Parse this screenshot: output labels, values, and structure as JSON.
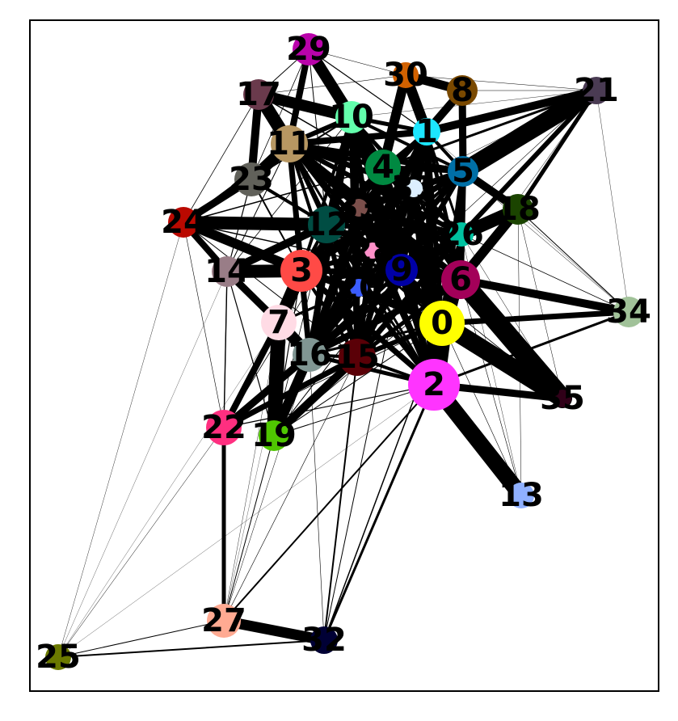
{
  "graph": {
    "nodes": [
      {
        "id": "0",
        "color": "#ffff00"
      },
      {
        "id": "1",
        "color": "#1ce6ff"
      },
      {
        "id": "2",
        "color": "#ff34ff"
      },
      {
        "id": "3",
        "color": "#ff4a46"
      },
      {
        "id": "4",
        "color": "#008941"
      },
      {
        "id": "5",
        "color": "#006fa6"
      },
      {
        "id": "6",
        "color": "#a30059"
      },
      {
        "id": "7",
        "color": "#ffdbe5"
      },
      {
        "id": "8",
        "color": "#7a4900"
      },
      {
        "id": "9",
        "color": "#0000a6"
      },
      {
        "id": "10",
        "color": "#63ffac"
      },
      {
        "id": "11",
        "color": "#b79762"
      },
      {
        "id": "12",
        "color": "#004d43"
      },
      {
        "id": "13",
        "color": "#8fb0ff"
      },
      {
        "id": "14",
        "color": "#997d87"
      },
      {
        "id": "15",
        "color": "#5a0007"
      },
      {
        "id": "16",
        "color": "#809693"
      },
      {
        "id": "17",
        "color": "#6a3a4c"
      },
      {
        "id": "18",
        "color": "#1b4400"
      },
      {
        "id": "19",
        "color": "#4fc601"
      },
      {
        "id": "20",
        "color": "#3b5dff"
      },
      {
        "id": "21",
        "color": "#4a3b53"
      },
      {
        "id": "22",
        "color": "#ff2f80"
      },
      {
        "id": "23",
        "color": "#61615a"
      },
      {
        "id": "24",
        "color": "#ba0900"
      },
      {
        "id": "25",
        "color": "#6b7900"
      },
      {
        "id": "26",
        "color": "#00c2a0"
      },
      {
        "id": "27",
        "color": "#ffaa92"
      },
      {
        "id": "28",
        "color": "#ff90c9"
      },
      {
        "id": "29",
        "color": "#b903aa"
      },
      {
        "id": "30",
        "color": "#d16100"
      },
      {
        "id": "31",
        "color": "#ddefff"
      },
      {
        "id": "32",
        "color": "#000035"
      },
      {
        "id": "33",
        "color": "#7b4f4b"
      },
      {
        "id": "34",
        "color": "#a1c299"
      },
      {
        "id": "35",
        "color": "#300018"
      }
    ]
  }
}
